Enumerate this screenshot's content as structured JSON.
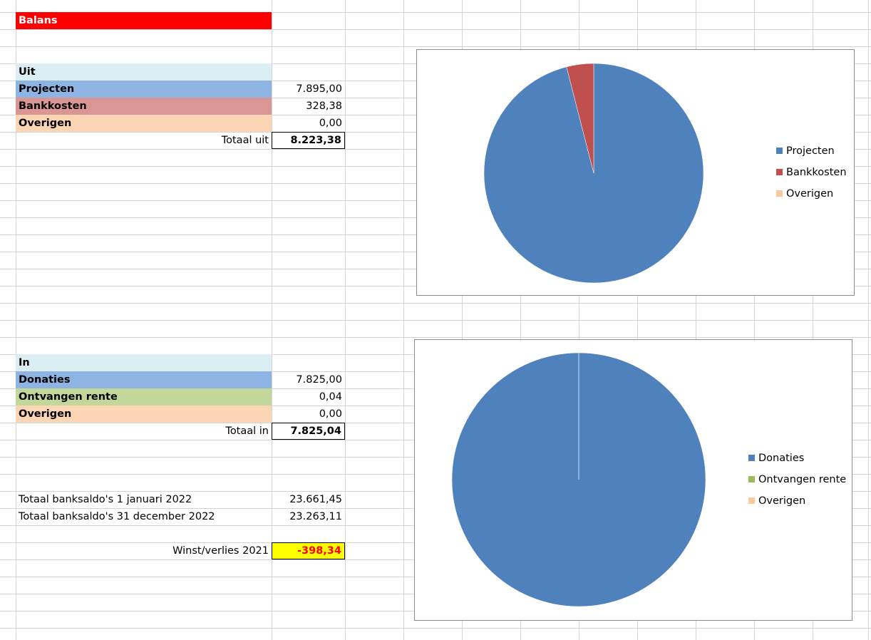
{
  "title": "Balans",
  "colors": {
    "title_bg": "#ff0000",
    "header_bg": "#daeef3",
    "blue": "#8db4e2",
    "red": "#da9694",
    "green": "#c4d79b",
    "peach": "#fcd5b4",
    "highlight": "#ffff00",
    "negative": "#ff0000",
    "pie_blue": "#4f81bd",
    "pie_red": "#c0504d",
    "pie_green": "#9bbb59",
    "pie_peach": "#f9cb9c"
  },
  "uit": {
    "header": "Uit",
    "items": [
      {
        "label": "Projecten",
        "value": "7.895,00"
      },
      {
        "label": "Bankkosten",
        "value": "328,38"
      },
      {
        "label": "Overigen",
        "value": "0,00"
      }
    ],
    "total_label": "Totaal uit",
    "total_value": "8.223,38"
  },
  "in": {
    "header": "In",
    "items": [
      {
        "label": "Donaties",
        "value": "7.825,00"
      },
      {
        "label": "Ontvangen rente",
        "value": "0,04"
      },
      {
        "label": "Overigen",
        "value": "0,00"
      }
    ],
    "total_label": "Totaal in",
    "total_value": "7.825,04"
  },
  "saldo": {
    "start_label": "Totaal banksaldo's 1 januari 2022",
    "start_value": "23.661,45",
    "end_label": "Totaal banksaldo's 31 december 2022",
    "end_value": "23.263,11"
  },
  "result": {
    "label": "Winst/verlies 2021",
    "value": "-398,34"
  },
  "chart_data": [
    {
      "type": "pie",
      "categories": [
        "Projecten",
        "Bankkosten",
        "Overigen"
      ],
      "values": [
        7895.0,
        328.38,
        0.0
      ],
      "colors": [
        "#4f81bd",
        "#c0504d",
        "#f9cb9c"
      ],
      "legend": "right"
    },
    {
      "type": "pie",
      "categories": [
        "Donaties",
        "Ontvangen rente",
        "Overigen"
      ],
      "values": [
        7825.0,
        0.04,
        0.0
      ],
      "colors": [
        "#4f81bd",
        "#9bbb59",
        "#f9cb9c"
      ],
      "legend": "right"
    }
  ]
}
